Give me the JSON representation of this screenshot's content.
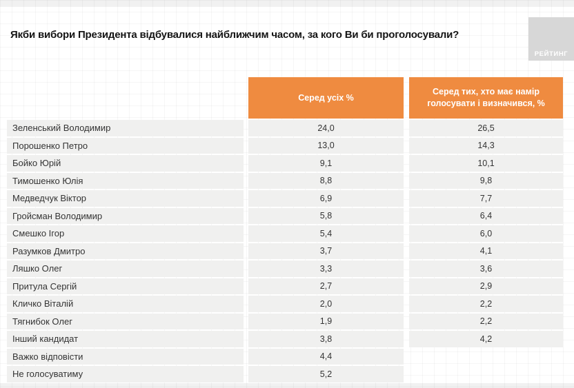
{
  "slide": {
    "title": "Якби вибори Президента відбувалися найближчим часом, за кого Ви би проголосували?",
    "logo_text": "РЕЙТИНГ"
  },
  "colors": {
    "accent_orange": "#EF8B40",
    "row_background": "#F0F0EF",
    "logo_background": "#D7D7D7",
    "header_text": "#FFFFFF",
    "body_text": "#333333"
  },
  "chart_data": {
    "type": "table",
    "title": "Якби вибори Президента відбувалися найближчим часом, за кого Ви би проголосували?",
    "columns": [
      "Серед усіх %",
      "Серед тих, хто має намір голосувати і визначився, %"
    ],
    "rows": [
      {
        "name": "Зеленський Володимир",
        "all": "24,0",
        "decided": "26,5"
      },
      {
        "name": "Порошенко Петро",
        "all": "13,0",
        "decided": "14,3"
      },
      {
        "name": "Бойко Юрій",
        "all": "9,1",
        "decided": "10,1"
      },
      {
        "name": "Тимошенко Юлія",
        "all": "8,8",
        "decided": "9,8"
      },
      {
        "name": "Медведчук Віктор",
        "all": "6,9",
        "decided": "7,7"
      },
      {
        "name": "Гройсман Володимир",
        "all": "5,8",
        "decided": "6,4"
      },
      {
        "name": "Смешко Ігор",
        "all": "5,4",
        "decided": "6,0"
      },
      {
        "name": "Разумков Дмитро",
        "all": "3,7",
        "decided": "4,1"
      },
      {
        "name": "Ляшко Олег",
        "all": "3,3",
        "decided": "3,6"
      },
      {
        "name": "Притула Сергій",
        "all": "2,7",
        "decided": "2,9"
      },
      {
        "name": "Кличко Віталій",
        "all": "2,0",
        "decided": "2,2"
      },
      {
        "name": "Тягнибок Олег",
        "all": "1,9",
        "decided": "2,2"
      },
      {
        "name": "Інший кандидат",
        "all": "3,8",
        "decided": "4,2"
      },
      {
        "name": "Важко відповісти",
        "all": "4,4",
        "decided": null
      },
      {
        "name": "Не голосуватиму",
        "all": "5,2",
        "decided": null
      }
    ]
  }
}
